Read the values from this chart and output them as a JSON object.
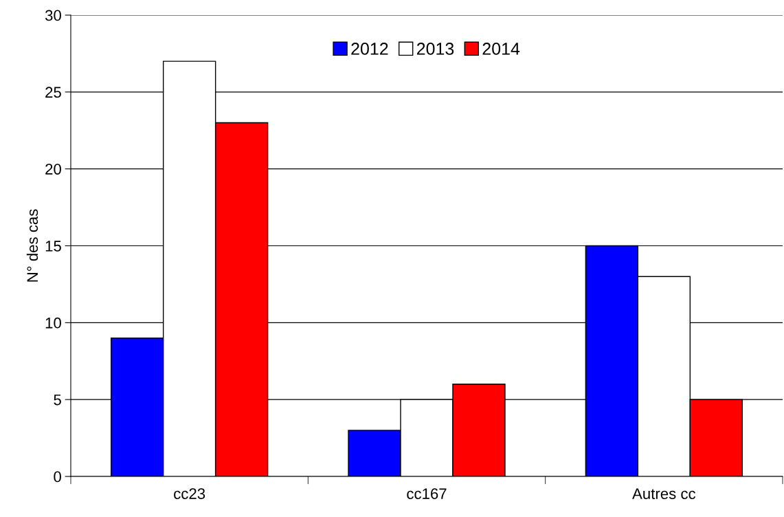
{
  "chart_data": {
    "type": "bar",
    "ylabel": "N° des cas",
    "categories": [
      "cc23",
      "cc167",
      "Autres cc"
    ],
    "series": [
      {
        "name": "2012",
        "color": "#0000ff",
        "values": [
          9,
          3,
          15
        ]
      },
      {
        "name": "2013",
        "color": "#ffffff",
        "values": [
          27,
          5,
          13
        ]
      },
      {
        "name": "2014",
        "color": "#ff0000",
        "values": [
          23,
          6,
          5
        ]
      }
    ],
    "ylim": [
      0,
      30
    ],
    "yticks": [
      0,
      5,
      10,
      15,
      20,
      25,
      30
    ],
    "grid": "y",
    "legend": "top"
  }
}
